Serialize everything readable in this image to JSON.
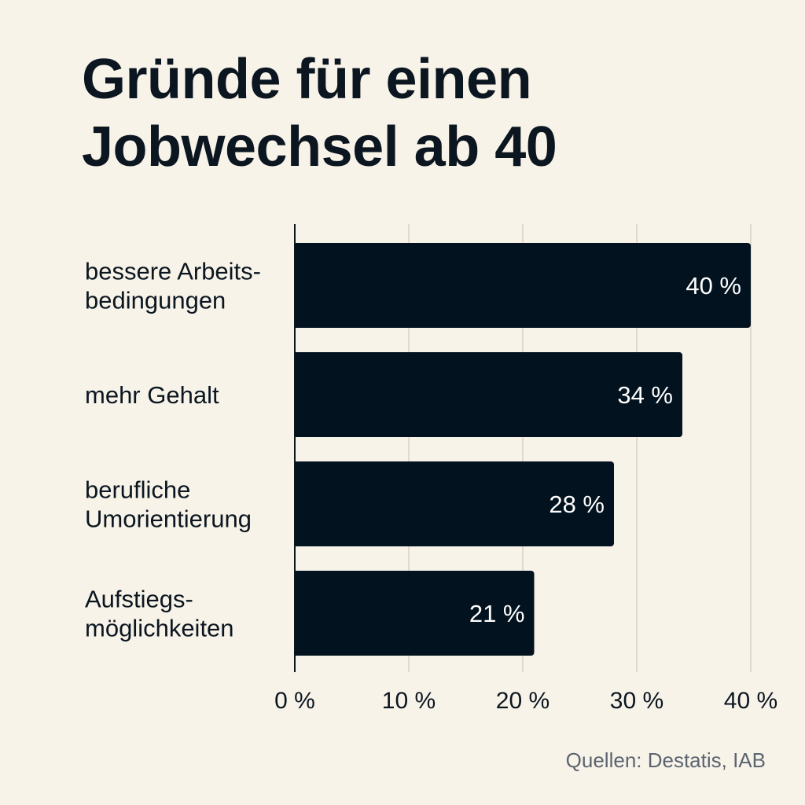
{
  "chart_data": {
    "type": "bar",
    "orientation": "horizontal",
    "title": "Gründe für einen\nJobwechsel ab 40",
    "categories": [
      "bessere Arbeits-\nbedingungen",
      "mehr Gehalt",
      "berufliche\nUmorientierung",
      "Aufstiegs-\nmöglichkeiten"
    ],
    "values": [
      40,
      34,
      28,
      21
    ],
    "data_labels": [
      "40 %",
      "34 %",
      "28 %",
      "21 %"
    ],
    "xlim": [
      0,
      40
    ],
    "xticks": [
      0,
      10,
      20,
      30,
      40
    ],
    "xtick_labels": [
      "0 %",
      "10 %",
      "20 %",
      "30 %",
      "40 %"
    ],
    "xlabel": "",
    "ylabel": "",
    "grid": "vertical",
    "bar_color": "#02121f",
    "background": "#f8f3e9",
    "source": "Quellen: Destatis, IAB"
  }
}
